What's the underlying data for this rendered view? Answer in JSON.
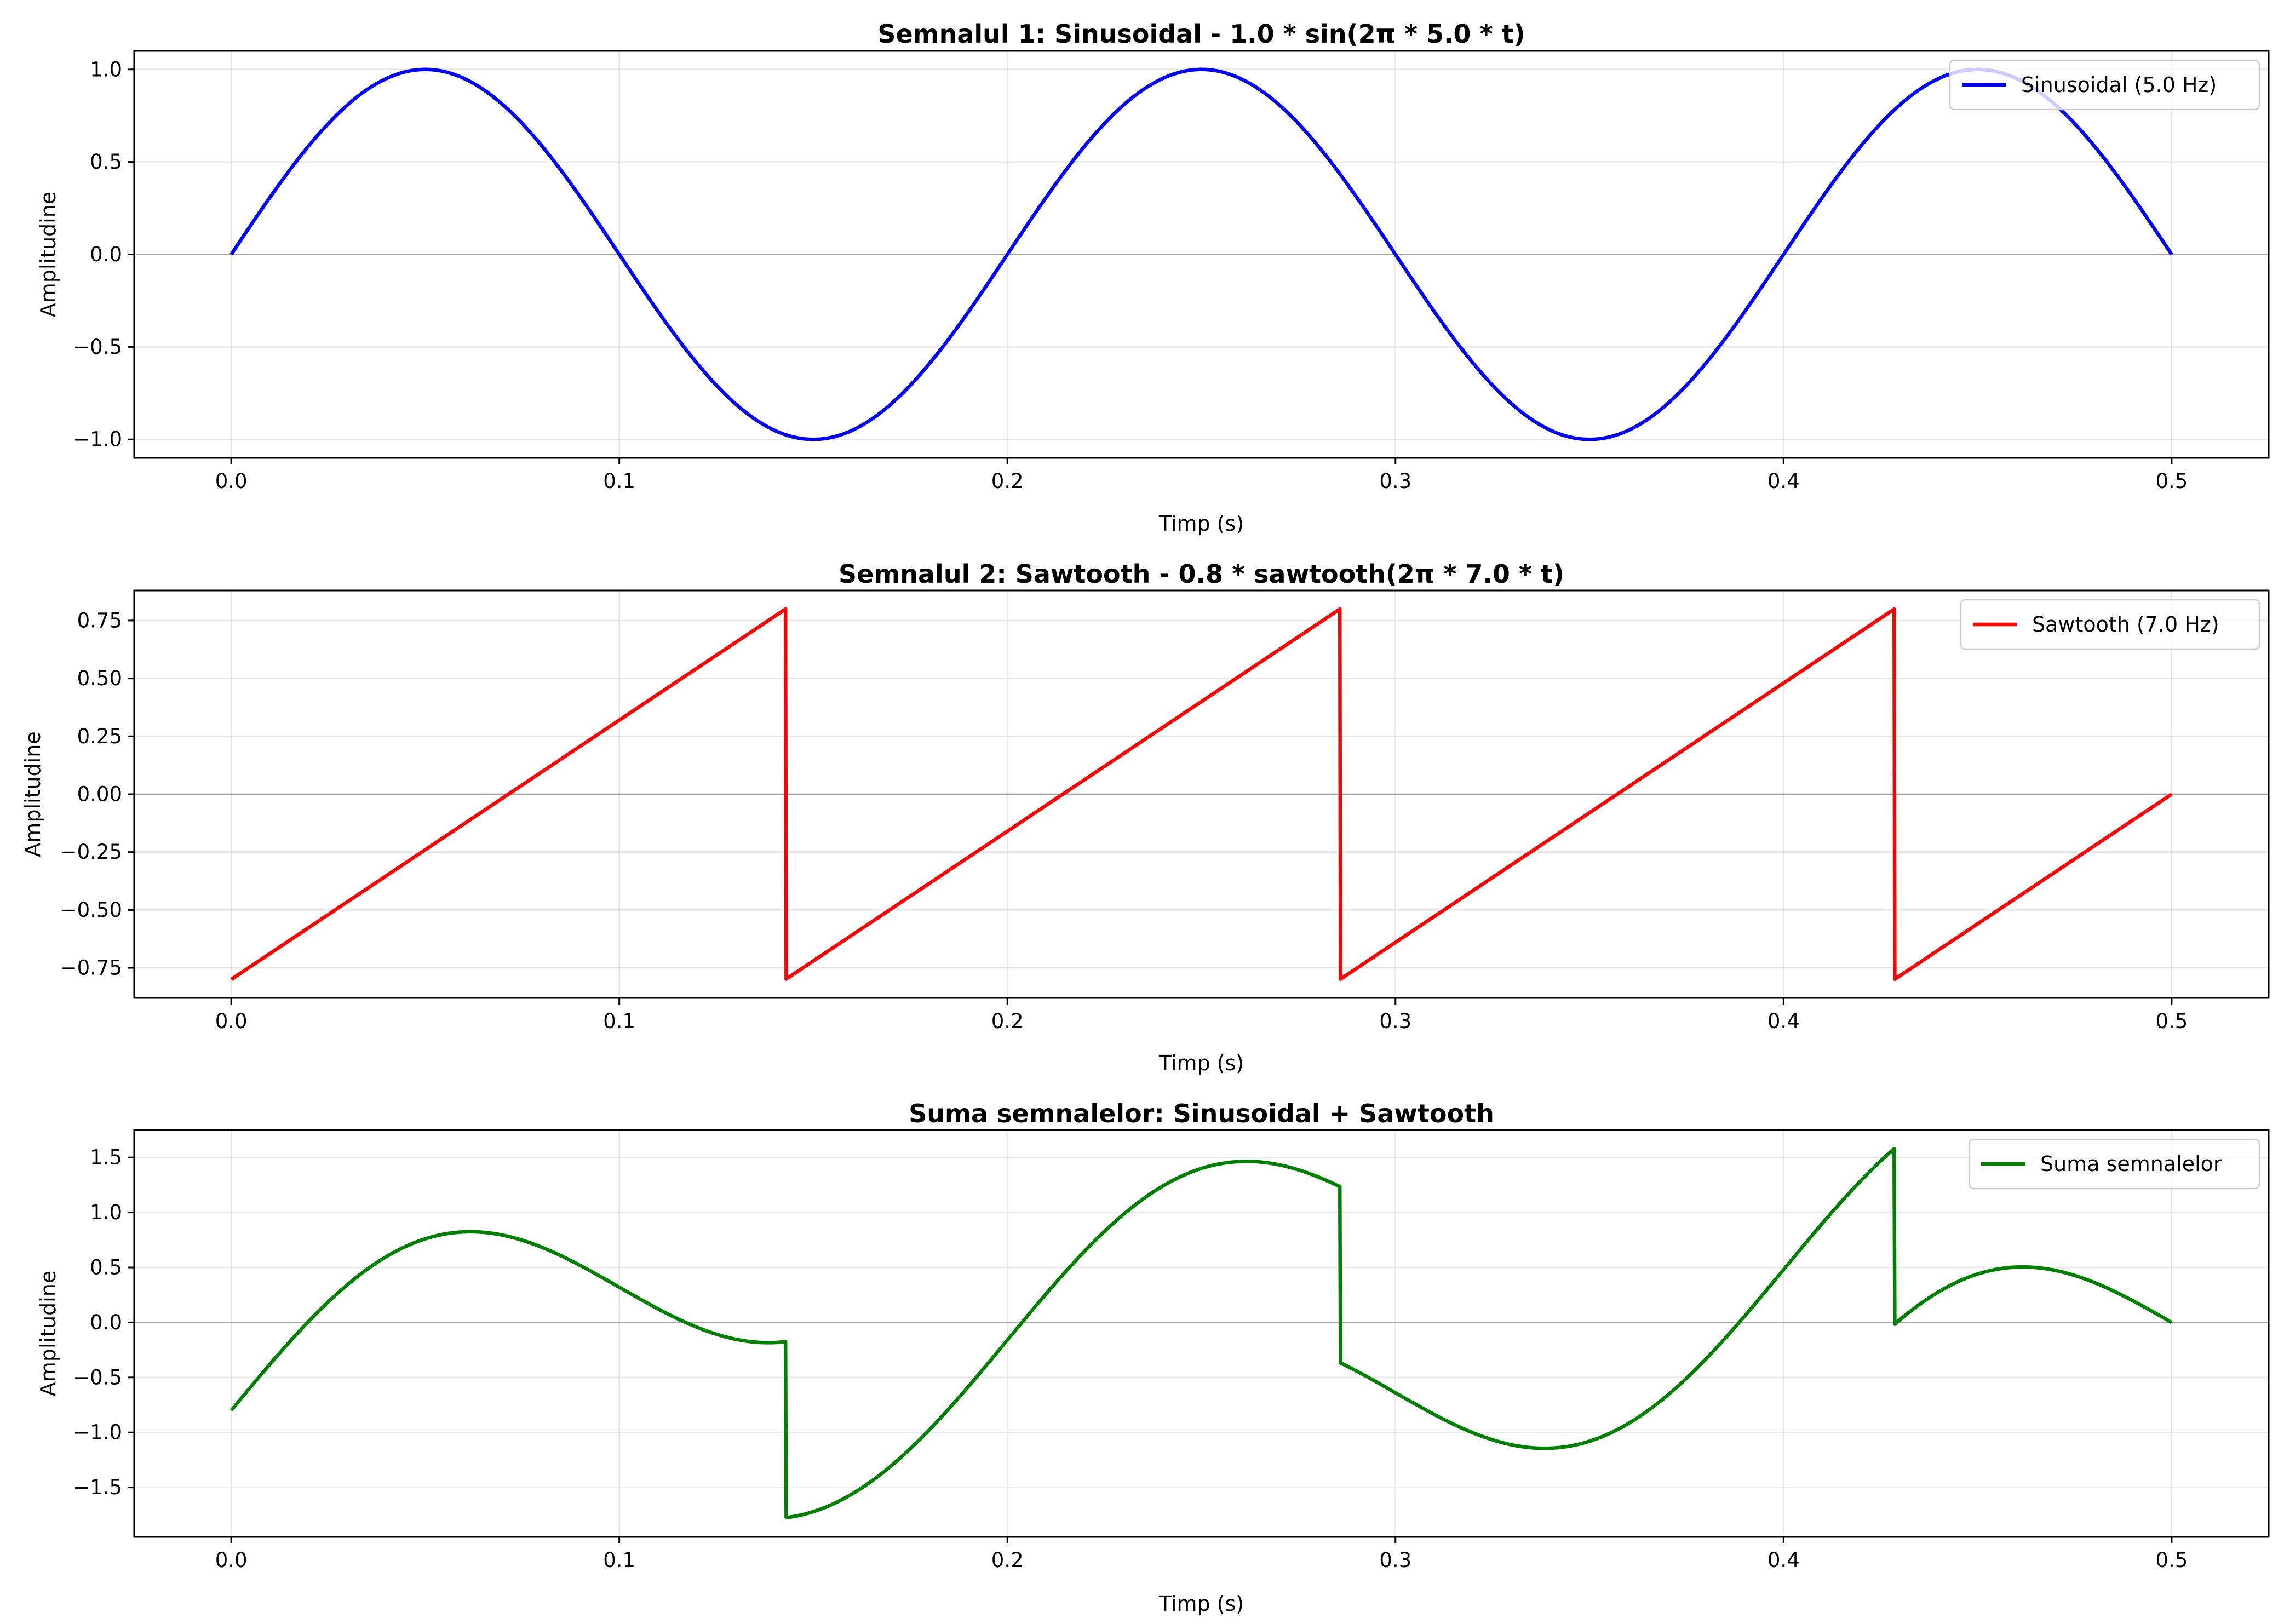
{
  "figure": {
    "n_samples": 3001,
    "t_start": 0.0,
    "t_end": 0.5
  },
  "chart_data": [
    {
      "type": "line",
      "title": "Semnalul 1: Sinusoidal - 1.0 * sin(2π * 5.0 * t)",
      "xlabel": "Timp (s)",
      "ylabel": "Amplitudine",
      "xlim": [
        -0.025,
        0.525
      ],
      "ylim": [
        -1.1,
        1.1
      ],
      "xticks": [
        0.0,
        0.1,
        0.2,
        0.3,
        0.4,
        0.5
      ],
      "xtick_labels": [
        "0.0",
        "0.1",
        "0.2",
        "0.3",
        "0.4",
        "0.5"
      ],
      "yticks": [
        -1.0,
        -0.5,
        0.0,
        0.5,
        1.0
      ],
      "ytick_labels": [
        "−1.0",
        "−0.5",
        "0.0",
        "0.5",
        "1.0"
      ],
      "grid": true,
      "zero_line": true,
      "legend_position": "top-right",
      "series": [
        {
          "name": "Sinusoidal (5.0 Hz)",
          "color": "#0000ff",
          "function": "sine",
          "amplitude": 1.0,
          "frequency_hz": 5.0
        }
      ]
    },
    {
      "type": "line",
      "title": "Semnalul 2: Sawtooth - 0.8 * sawtooth(2π * 7.0 * t)",
      "xlabel": "Timp (s)",
      "ylabel": "Amplitudine",
      "xlim": [
        -0.025,
        0.525
      ],
      "ylim": [
        -0.88,
        0.88
      ],
      "xticks": [
        0.0,
        0.1,
        0.2,
        0.3,
        0.4,
        0.5
      ],
      "xtick_labels": [
        "0.0",
        "0.1",
        "0.2",
        "0.3",
        "0.4",
        "0.5"
      ],
      "yticks": [
        -0.75,
        -0.5,
        -0.25,
        0.0,
        0.25,
        0.5,
        0.75
      ],
      "ytick_labels": [
        "−0.75",
        "−0.50",
        "−0.25",
        "0.00",
        "0.25",
        "0.50",
        "0.75"
      ],
      "grid": true,
      "zero_line": true,
      "legend_position": "top-right",
      "series": [
        {
          "name": "Sawtooth (7.0 Hz)",
          "color": "#ff0000",
          "function": "sawtooth",
          "amplitude": 0.8,
          "frequency_hz": 7.0
        }
      ]
    },
    {
      "type": "line",
      "title": "Suma semnalelor: Sinusoidal + Sawtooth",
      "xlabel": "Timp (s)",
      "ylabel": "Amplitudine",
      "xlim": [
        -0.025,
        0.525
      ],
      "ylim": [
        -1.95,
        1.75
      ],
      "xticks": [
        0.0,
        0.1,
        0.2,
        0.3,
        0.4,
        0.5
      ],
      "xtick_labels": [
        "0.0",
        "0.1",
        "0.2",
        "0.3",
        "0.4",
        "0.5"
      ],
      "yticks": [
        -1.5,
        -1.0,
        -0.5,
        0.0,
        0.5,
        1.0,
        1.5
      ],
      "ytick_labels": [
        "−1.5",
        "−1.0",
        "−0.5",
        "0.0",
        "0.5",
        "1.0",
        "1.5"
      ],
      "grid": true,
      "zero_line": true,
      "legend_position": "top-right",
      "series": [
        {
          "name": "Suma semnalelor",
          "color": "#008000",
          "function": "sum",
          "components": [
            "Sinusoidal (5.0 Hz)",
            "Sawtooth (7.0 Hz)"
          ]
        }
      ]
    }
  ]
}
